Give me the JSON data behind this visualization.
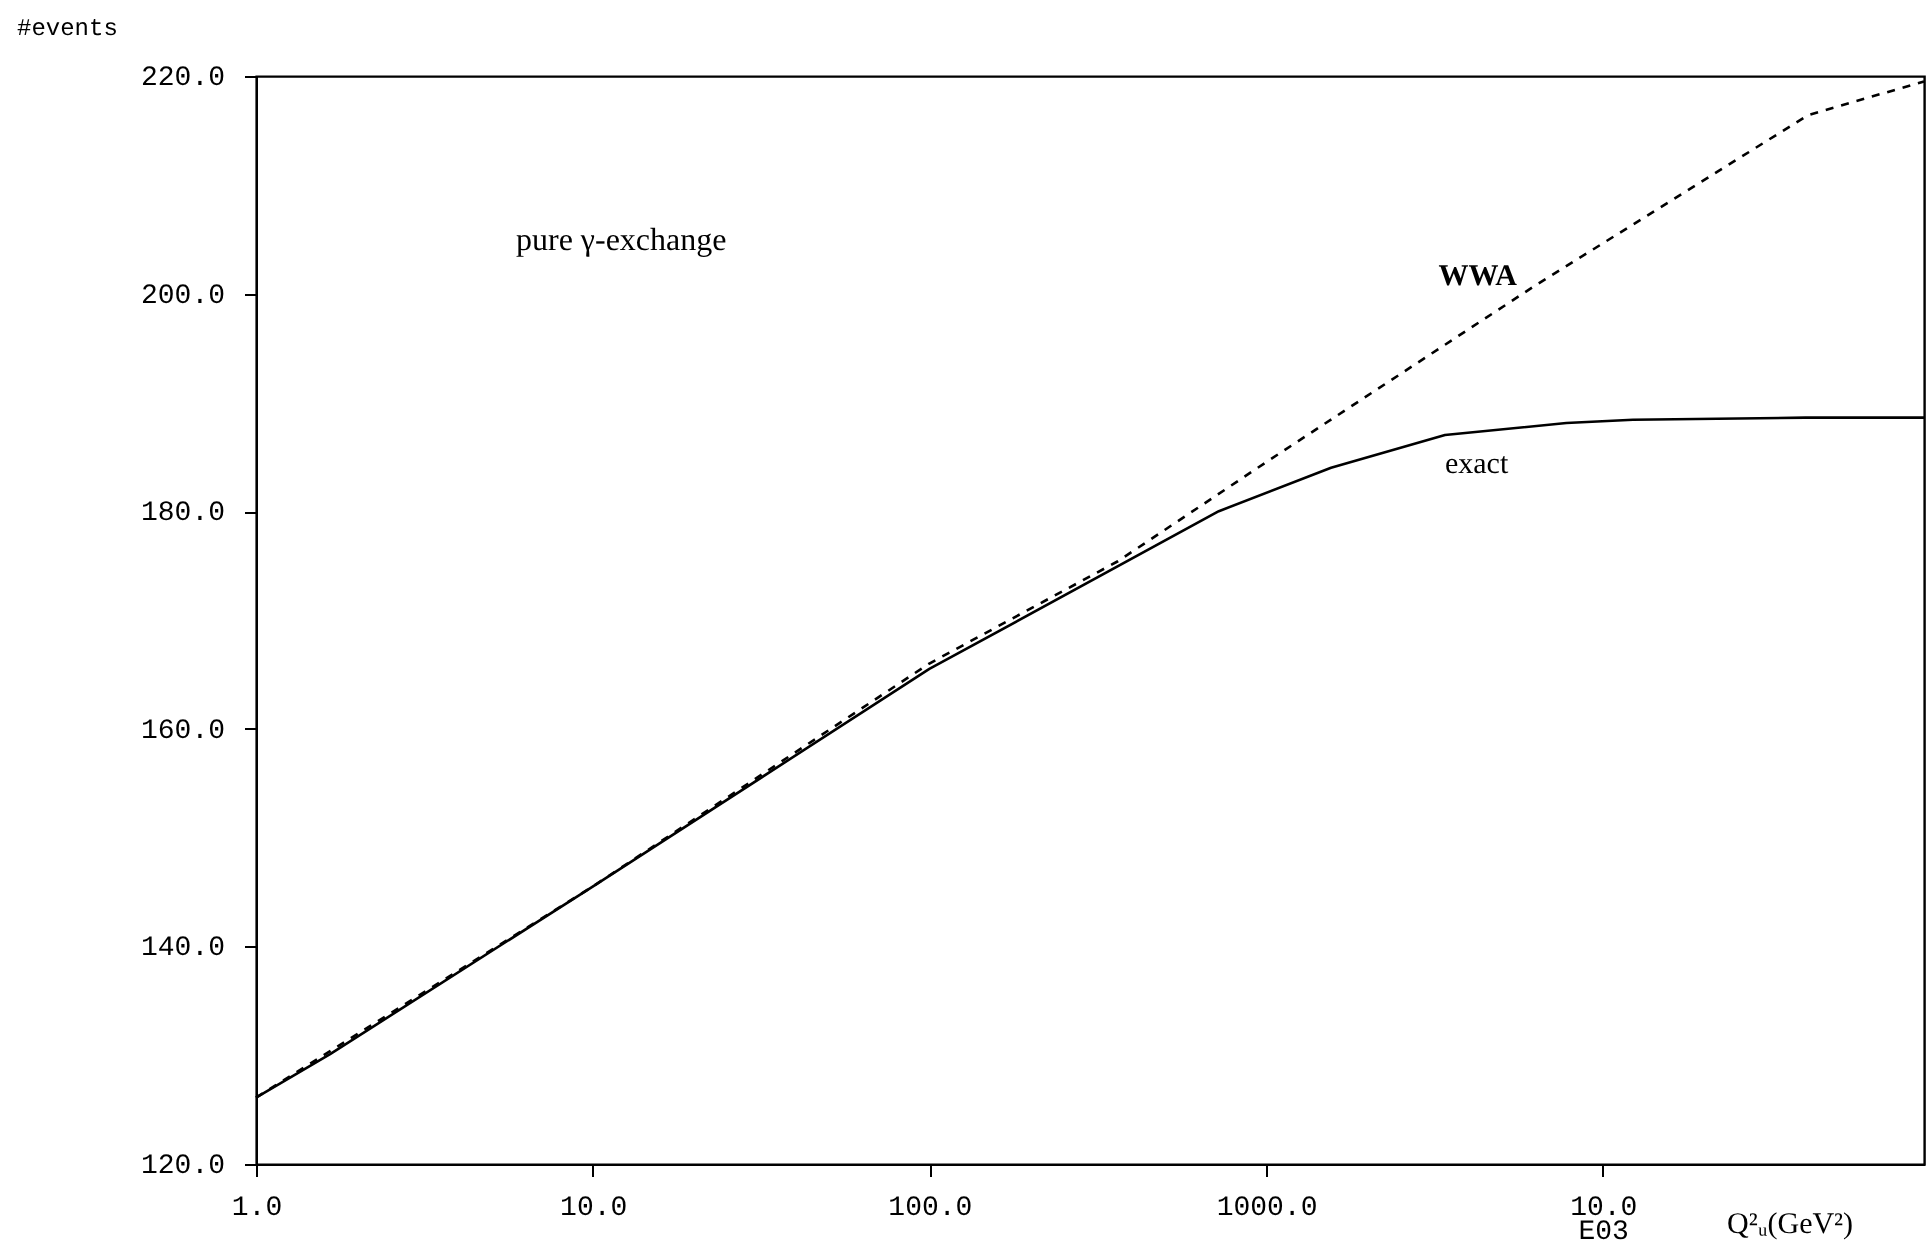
{
  "chart_data": {
    "type": "line",
    "xlabel": "Q²ᵤ(GeV²)",
    "ylabel": "#events",
    "log": "x",
    "grid": false,
    "marker": "none",
    "annotations": [
      "pure γ-exchange"
    ],
    "xlim": [
      1,
      90000
    ],
    "xticks": [
      {
        "value": 1,
        "label": "1.0"
      },
      {
        "value": 10,
        "label": "10.0"
      },
      {
        "value": 100,
        "label": "100.0"
      },
      {
        "value": 1000,
        "label": "1000.0"
      },
      {
        "value": 10000,
        "label": "10.0\nE03"
      }
    ],
    "ylim": [
      120,
      220
    ],
    "yticks": [
      {
        "value": 120,
        "label": "120.0"
      },
      {
        "value": 140,
        "label": "140.0"
      },
      {
        "value": 160,
        "label": "160.0"
      },
      {
        "value": 180,
        "label": "180.0"
      },
      {
        "value": 200,
        "label": "200.0"
      },
      {
        "value": 220,
        "label": "220.0"
      }
    ],
    "series": [
      {
        "name": "WWA",
        "color": "#000000",
        "line_style": "dashed",
        "x": [
          1,
          10,
          100,
          363,
          1000,
          6200,
          40700,
          90000
        ],
        "values": [
          126.1,
          145.5,
          166,
          175.4,
          184.5,
          200.6,
          216.4,
          219.5
        ]
      },
      {
        "name": "exact",
        "color": "#000000",
        "line_style": "solid",
        "x": [
          1,
          1.66,
          10,
          100,
          724,
          1560,
          3400,
          7800,
          12300,
          40000,
          90000
        ],
        "values": [
          126.1,
          130.1,
          145.5,
          165.5,
          180.0,
          184.0,
          187.0,
          188.1,
          188.4,
          188.6,
          188.6
        ]
      }
    ]
  }
}
